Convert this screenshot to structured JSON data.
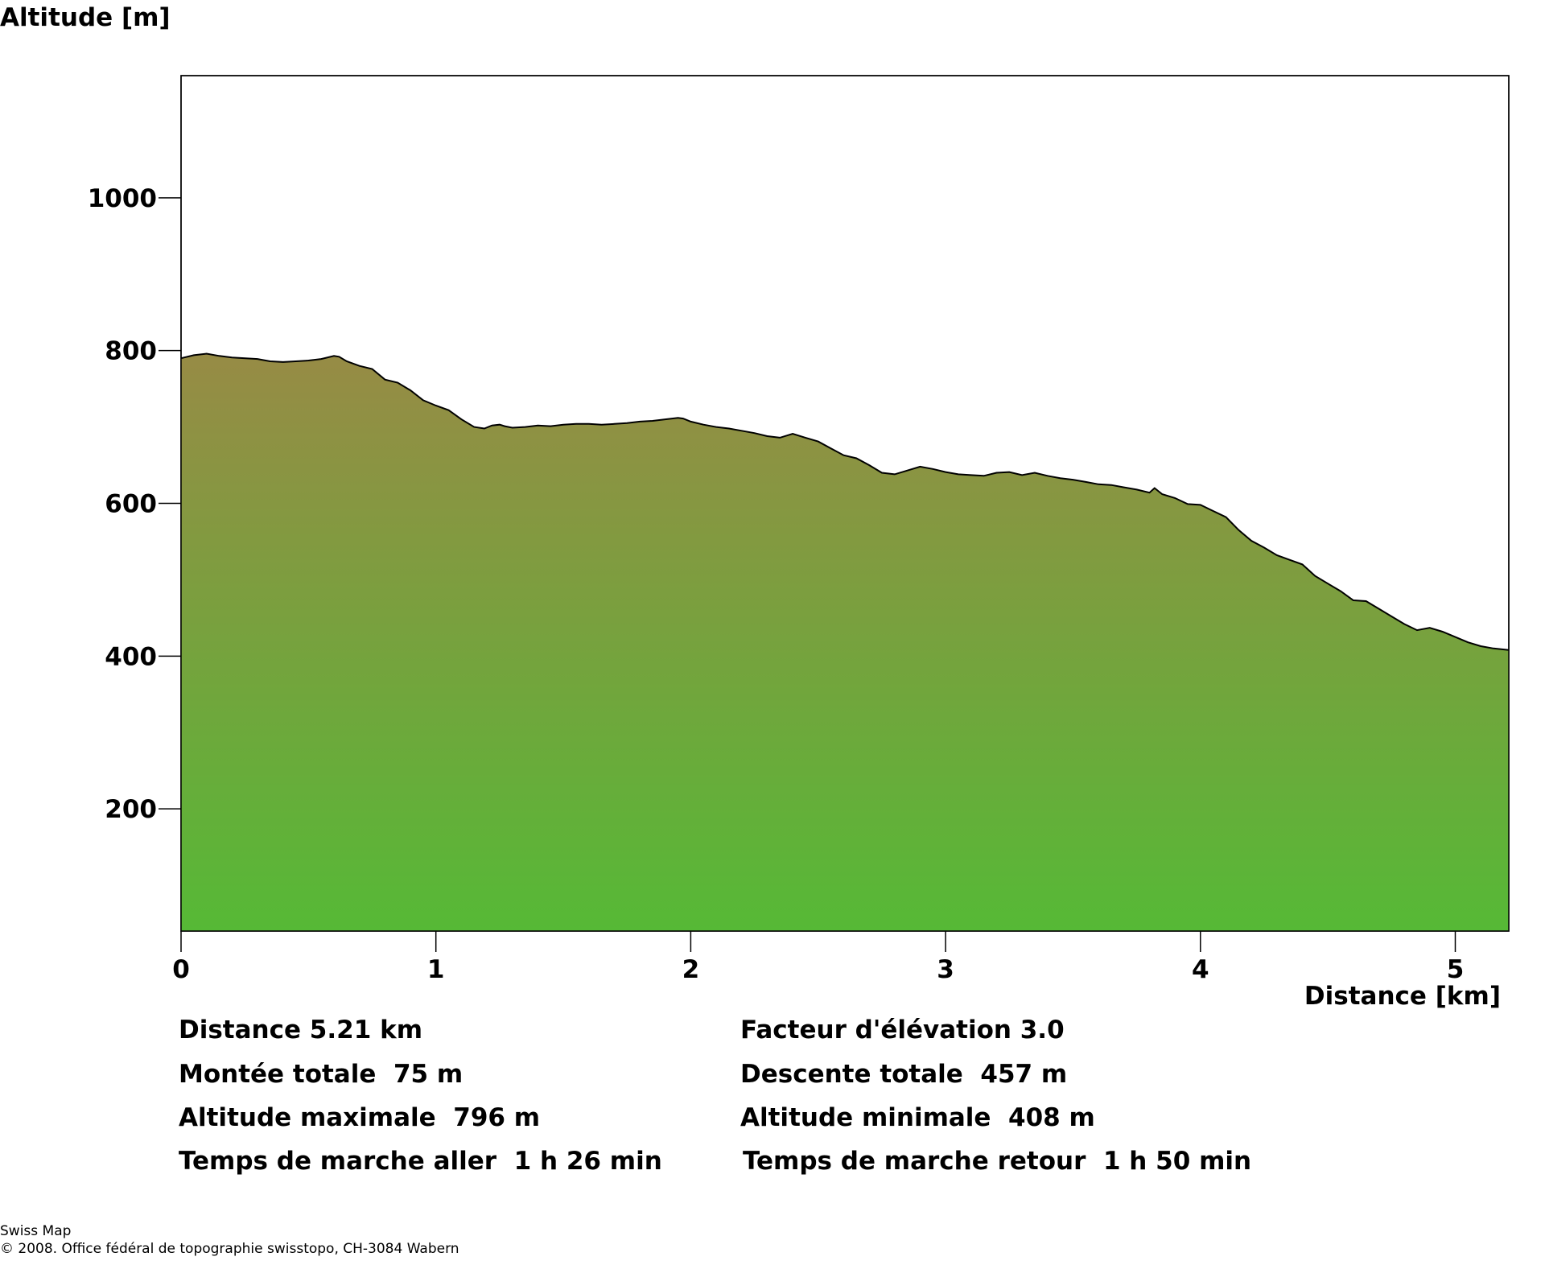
{
  "chart_data": {
    "type": "area",
    "ylabel": "Altitude [m]",
    "xlabel": "Distance [km]",
    "xlim": [
      0,
      5.21
    ],
    "ylim": [
      40,
      1160
    ],
    "xticks": [
      0,
      1,
      2,
      3,
      4,
      5
    ],
    "yticks": [
      200,
      400,
      600,
      800,
      1000
    ],
    "grid": false,
    "fill_gradient": [
      "#978b45",
      "#56b936"
    ],
    "series": [
      {
        "x": [
          0,
          0.05,
          0.1,
          0.15,
          0.2,
          0.3,
          0.35,
          0.4,
          0.45,
          0.5,
          0.55,
          0.6,
          0.62,
          0.65,
          0.7,
          0.75,
          0.8,
          0.85,
          0.9,
          0.95,
          1.0,
          1.05,
          1.1,
          1.15,
          1.19,
          1.22,
          1.25,
          1.27,
          1.3,
          1.35,
          1.4,
          1.45,
          1.5,
          1.55,
          1.6,
          1.65,
          1.7,
          1.75,
          1.8,
          1.85,
          1.9,
          1.95,
          1.97,
          2.0,
          2.05,
          2.1,
          2.15,
          2.2,
          2.25,
          2.3,
          2.35,
          2.4,
          2.45,
          2.5,
          2.55,
          2.6,
          2.65,
          2.7,
          2.75,
          2.8,
          2.85,
          2.9,
          2.95,
          3.0,
          3.05,
          3.1,
          3.15,
          3.2,
          3.25,
          3.3,
          3.35,
          3.4,
          3.45,
          3.5,
          3.55,
          3.6,
          3.65,
          3.7,
          3.75,
          3.8,
          3.82,
          3.85,
          3.9,
          3.95,
          4.0,
          4.05,
          4.1,
          4.15,
          4.2,
          4.25,
          4.3,
          4.35,
          4.4,
          4.45,
          4.5,
          4.55,
          4.6,
          4.65,
          4.7,
          4.75,
          4.8,
          4.85,
          4.9,
          4.95,
          5.0,
          5.05,
          5.1,
          5.15,
          5.21
        ],
        "y": [
          790,
          794,
          796,
          793,
          791,
          789,
          786,
          785,
          786,
          787,
          789,
          793,
          792,
          786,
          780,
          776,
          762,
          758,
          748,
          735,
          728,
          722,
          710,
          700,
          698,
          702,
          703,
          701,
          699,
          700,
          702,
          701,
          703,
          704,
          704,
          703,
          704,
          705,
          707,
          708,
          710,
          712,
          711,
          707,
          703,
          700,
          698,
          695,
          692,
          688,
          686,
          691,
          686,
          681,
          672,
          663,
          659,
          650,
          640,
          638,
          643,
          648,
          645,
          641,
          638,
          637,
          636,
          640,
          641,
          637,
          640,
          636,
          633,
          631,
          628,
          625,
          624,
          621,
          618,
          614,
          620,
          612,
          607,
          599,
          598,
          590,
          582,
          565,
          551,
          542,
          532,
          526,
          520,
          505,
          495,
          485,
          473,
          472,
          462,
          452,
          442,
          434,
          437,
          432,
          425,
          418,
          413,
          410,
          408
        ]
      }
    ]
  },
  "stats": {
    "distance": "Distance 5.21 km",
    "elevation_factor": "Facteur d'élévation 3.0",
    "total_ascent": "Montée totale  75 m",
    "total_descent": "Descente totale  457 m",
    "max_altitude": "Altitude maximale  796 m",
    "min_altitude": "Altitude minimale  408 m",
    "walk_time_out": "Temps de marche aller  1 h 26 min",
    "walk_time_back": "Temps de marche retour  1 h 50 min"
  },
  "credits": {
    "line1": "Swiss Map",
    "line2": "© 2008. Office fédéral de topographie swisstopo, CH-3084 Wabern"
  }
}
